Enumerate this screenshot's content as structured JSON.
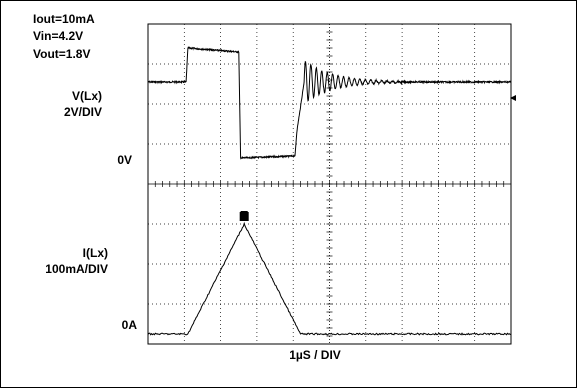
{
  "chart_data": [
    {
      "type": "line",
      "title": "",
      "conditions": [
        "Iout=10mA",
        "Vin=4.2V",
        "Vout=1.8V"
      ],
      "ylabel": "V(Lx)",
      "yscale_label": "2V/DIV",
      "zero_label": "0V",
      "xlabel": "1µS / DIV",
      "xlim": [
        0,
        10
      ],
      "ylim_div": [
        4,
        8
      ],
      "series": [
        {
          "x": [
            0,
            1.05,
            1.1,
            2.5,
            2.55,
            4.05,
            4.1,
            4.3,
            10
          ],
          "y": [
            6.55,
            6.55,
            7.4,
            7.3,
            4.65,
            4.7,
            5.3,
            6.55,
            6.55
          ],
          "ringing": {
            "start": 4.3,
            "end": 7.0,
            "period": 0.15,
            "amp_div": 0.55,
            "decay": 0.75
          }
        }
      ]
    },
    {
      "type": "line",
      "ylabel": "I(Lx)",
      "yscale_label": "100mA/DIV",
      "zero_label": "0A",
      "trigger_marker": "T",
      "xlim": [
        0,
        10
      ],
      "ylim_div": [
        0,
        4
      ],
      "series": [
        {
          "x": [
            0,
            1.1,
            2.65,
            4.2,
            10
          ],
          "y": [
            0.25,
            0.25,
            3.0,
            0.25,
            0.25
          ]
        }
      ]
    }
  ]
}
